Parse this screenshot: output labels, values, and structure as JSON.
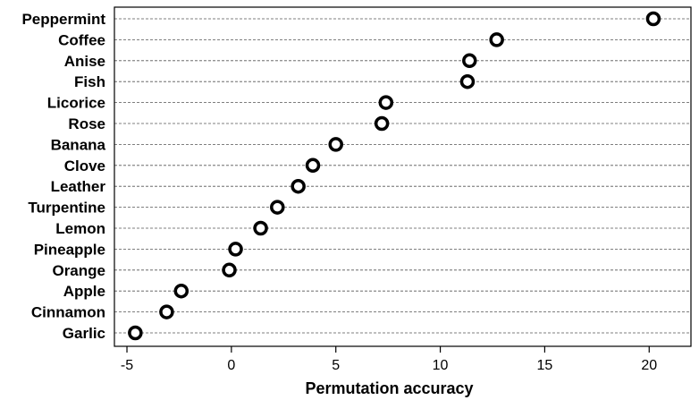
{
  "chart_data": {
    "type": "scatter",
    "title": "",
    "xlabel": "Permutation accuracy",
    "ylabel": "",
    "xlim": [
      -5.6,
      22.0
    ],
    "xticks": [
      -5,
      0,
      5,
      10,
      15,
      20
    ],
    "xtick_labels": [
      "-5",
      "0",
      "5",
      "10",
      "15",
      "20"
    ],
    "grid": "horizontal dashed",
    "categories": [
      "Peppermint",
      "Coffee",
      "Anise",
      "Fish",
      "Licorice",
      "Rose",
      "Banana",
      "Clove",
      "Leather",
      "Turpentine",
      "Lemon",
      "Pineapple",
      "Orange",
      "Apple",
      "Cinnamon",
      "Garlic"
    ],
    "values": [
      20.2,
      12.7,
      11.4,
      11.3,
      7.4,
      7.2,
      5.0,
      3.9,
      3.2,
      2.2,
      1.4,
      0.2,
      -0.1,
      -2.4,
      -3.1,
      -4.6
    ]
  }
}
